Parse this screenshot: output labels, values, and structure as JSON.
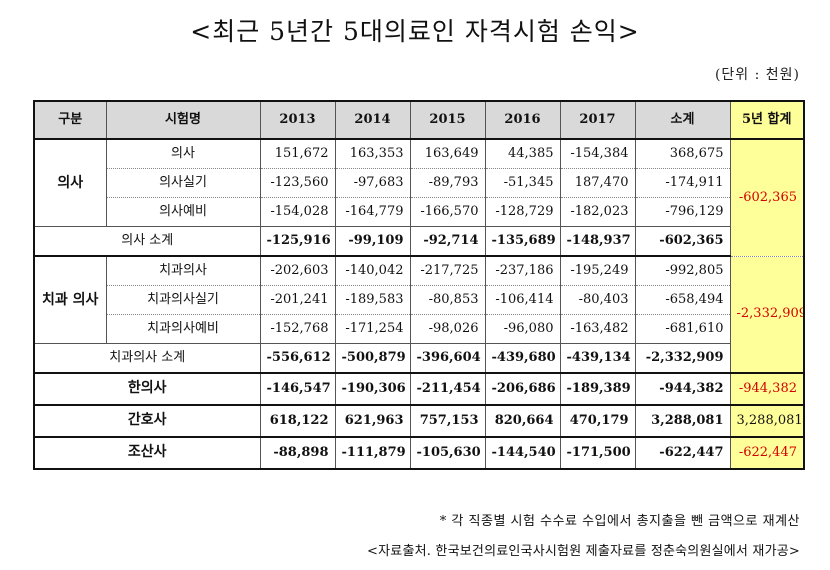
{
  "title": "<최근 5년간 5대의료인 자격시험 손익>",
  "unit": "(단위 : 천원)",
  "columns": [
    "구분",
    "시험명",
    "2013",
    "2014",
    "2015",
    "2016",
    "2017",
    "소계",
    "5년 합계"
  ],
  "groups": {
    "doctor": {
      "label": "의사",
      "rows": [
        {
          "name": "의사",
          "values": [
            "151,672",
            "163,353",
            "163,649",
            "44,385",
            "-154,384",
            "368,675"
          ]
        },
        {
          "name": "의사실기",
          "values": [
            "-123,560",
            "-97,683",
            "-89,793",
            "-51,345",
            "187,470",
            "-174,911"
          ]
        },
        {
          "name": "의사예비",
          "values": [
            "-154,028",
            "-164,779",
            "-166,570",
            "-128,729",
            "-182,023",
            "-796,129"
          ]
        }
      ],
      "subtotal": {
        "name": "의사 소계",
        "values": [
          "-125,916",
          "-99,109",
          "-92,714",
          "-135,689",
          "-148,937",
          "-602,365"
        ]
      },
      "total": "-602,365"
    },
    "dentist": {
      "label": "치과 의사",
      "rows": [
        {
          "name": "치과의사",
          "values": [
            "-202,603",
            "-140,042",
            "-217,725",
            "-237,186",
            "-195,249",
            "-992,805"
          ]
        },
        {
          "name": "치과의사실기",
          "values": [
            "-201,241",
            "-189,583",
            "-80,853",
            "-106,414",
            "-80,403",
            "-658,494"
          ]
        },
        {
          "name": "치과의사예비",
          "values": [
            "-152,768",
            "-171,254",
            "-98,026",
            "-96,080",
            "-163,482",
            "-681,610"
          ]
        }
      ],
      "subtotal": {
        "name": "치과의사 소계",
        "values": [
          "-556,612",
          "-500,879",
          "-396,604",
          "-439,680",
          "-439,134",
          "-2,332,909"
        ]
      },
      "total": "-2,332,909"
    }
  },
  "singles": [
    {
      "name": "한의사",
      "values": [
        "-146,547",
        "-190,306",
        "-211,454",
        "-206,686",
        "-189,389",
        "-944,382"
      ],
      "total": "-944,382",
      "negative": true
    },
    {
      "name": "간호사",
      "values": [
        "618,122",
        "621,963",
        "757,153",
        "820,664",
        "470,179",
        "3,288,081"
      ],
      "total": "3,288,081",
      "negative": false
    },
    {
      "name": "조산사",
      "values": [
        "-88,898",
        "-111,879",
        "-105,630",
        "-144,540",
        "-171,500",
        "-622,447"
      ],
      "total": "-622,447",
      "negative": true
    }
  ],
  "notes": {
    "note1": "* 각 직종별 시험 수수료 수입에서 총지출을 뺀 금액으로 재계산",
    "note2": "<자료출처. 한국보건의료인국사시험원 제출자료를 정춘숙의원실에서 재가공>"
  },
  "colors": {
    "highlight": "#ffff99",
    "header": "#d9d9d9",
    "negative_total": "#d40000"
  }
}
